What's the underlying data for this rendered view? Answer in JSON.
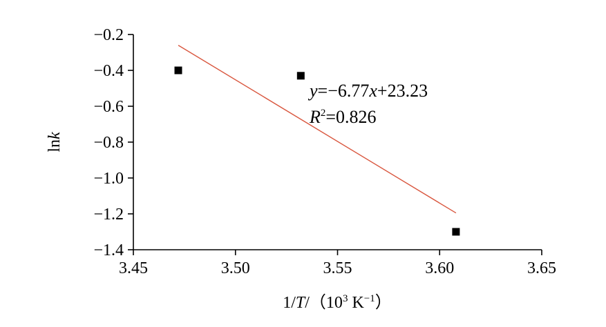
{
  "chart_data": {
    "type": "scatter",
    "title": "",
    "xlabel": "1/T/（10³ K⁻¹）",
    "ylabel": "lnk",
    "xlim": [
      3.45,
      3.65
    ],
    "ylim": [
      -1.4,
      -0.2
    ],
    "x_ticks": [
      3.45,
      3.5,
      3.55,
      3.6,
      3.65
    ],
    "x_tick_labels": [
      "3.45",
      "3.50",
      "3.55",
      "3.60",
      "3.65"
    ],
    "y_ticks": [
      -0.2,
      -0.4,
      -0.6,
      -0.8,
      -1.0,
      -1.2,
      -1.4
    ],
    "y_tick_labels": [
      "−0.2",
      "−0.4",
      "−0.6",
      "−0.8",
      "−1.0",
      "−1.2",
      "−1.4"
    ],
    "grid": false,
    "series": [
      {
        "type": "scatter",
        "x": [
          3.472,
          3.532,
          3.608
        ],
        "y": [
          -0.4,
          -0.43,
          -1.3
        ],
        "color": "#000000",
        "marker": "square"
      },
      {
        "type": "line",
        "x": [
          3.472,
          3.608
        ],
        "y": [
          -0.26,
          -1.195
        ],
        "color": "#d9573f"
      }
    ],
    "annotations": {
      "equation": "y=−6.77x+23.23",
      "r_squared": "R²=0.826"
    }
  }
}
